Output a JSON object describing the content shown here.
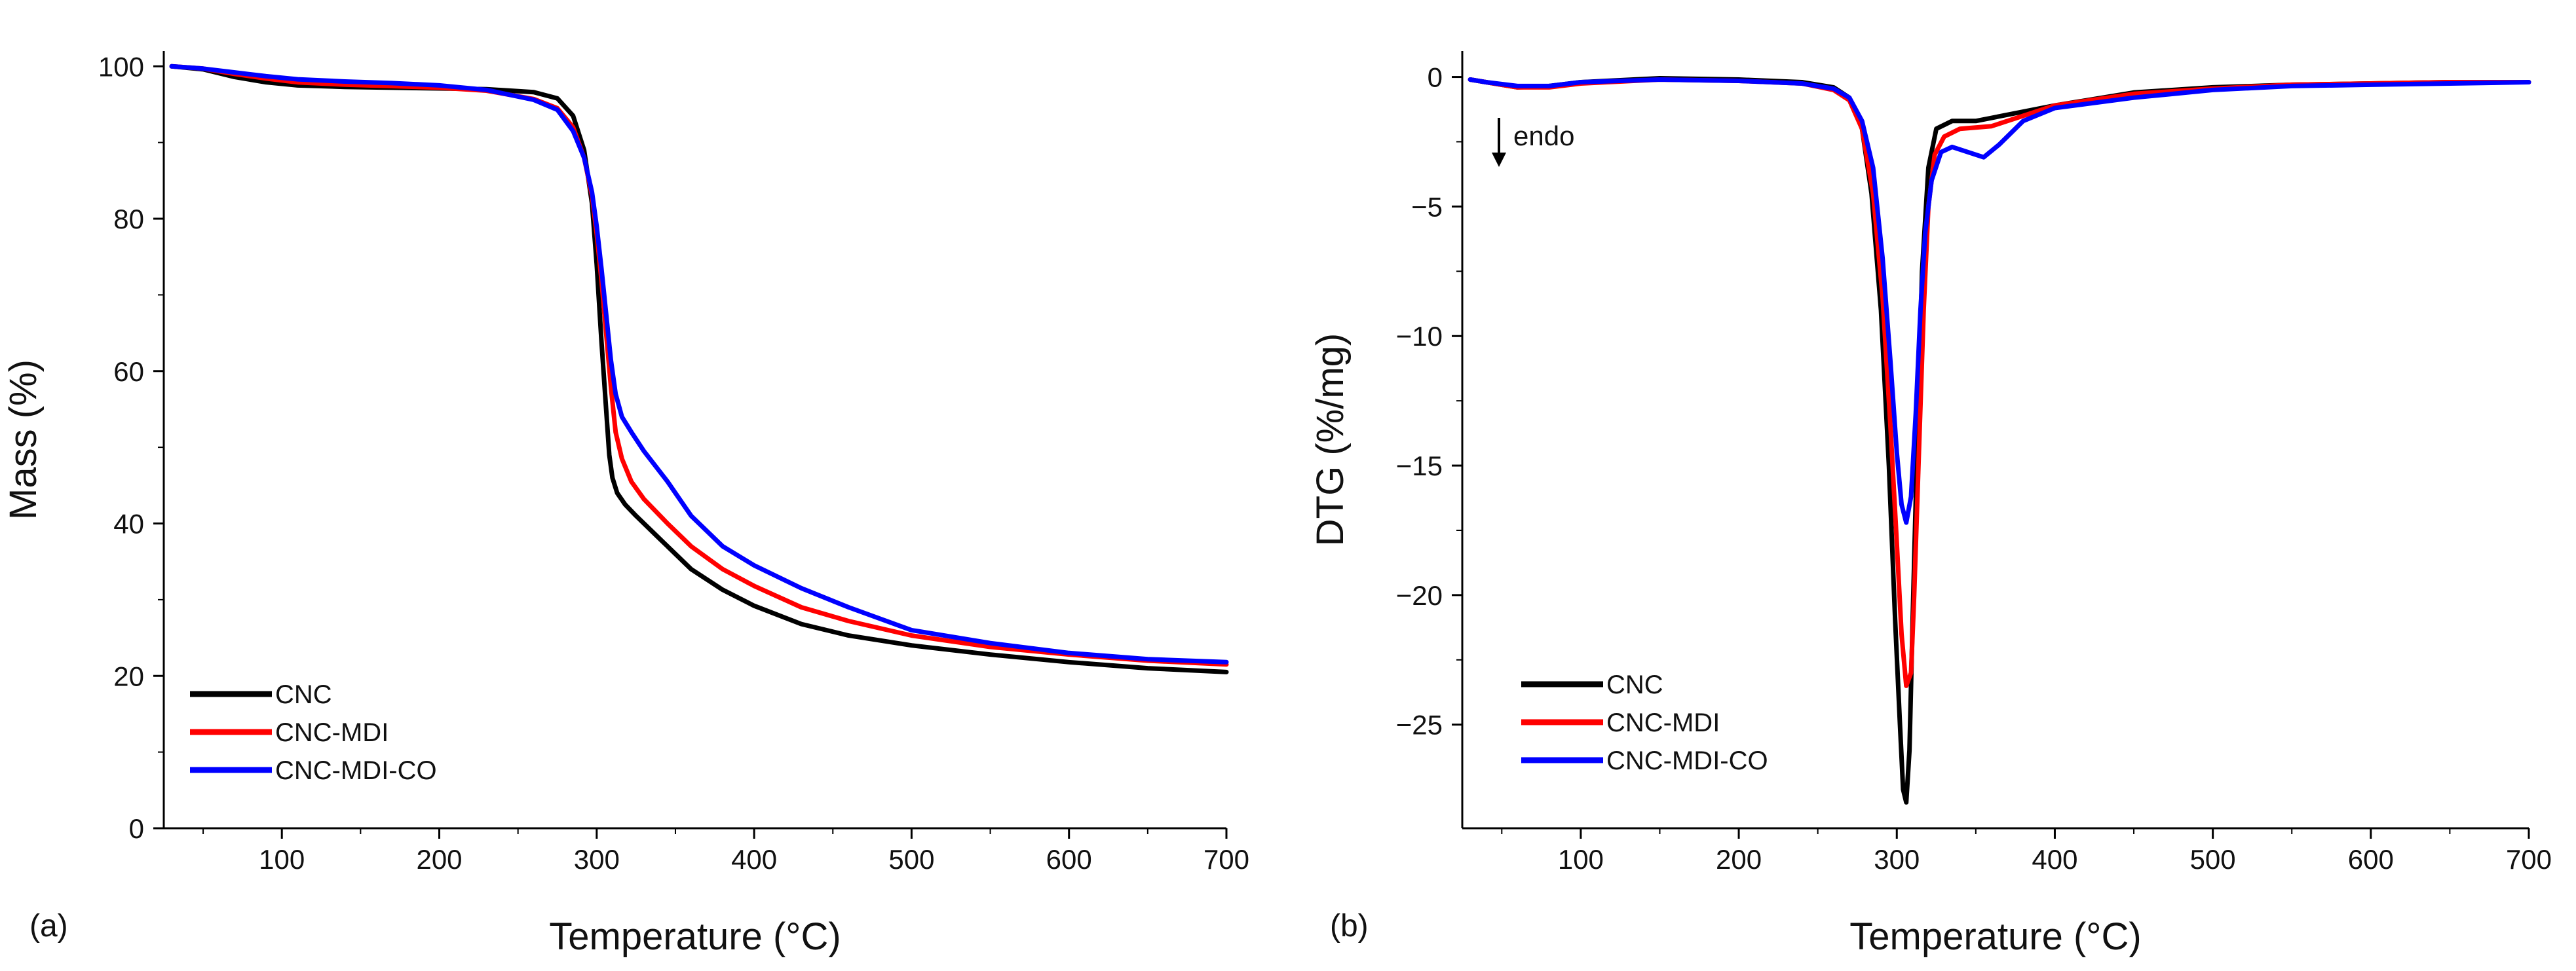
{
  "chart_data": [
    {
      "type": "line",
      "panel_label": "(a)",
      "title": "",
      "xlabel": "Temperature  (°C)",
      "ylabel": "Mass (%)",
      "xlim": [
        25,
        700
      ],
      "ylim": [
        0,
        102
      ],
      "xticks": [
        100,
        200,
        300,
        400,
        500,
        600,
        700
      ],
      "yticks": [
        0,
        20,
        40,
        60,
        80,
        100
      ],
      "grid": false,
      "legend_position": "bottom-left",
      "series": [
        {
          "name": "CNC",
          "color": "#000000",
          "x": [
            30,
            50,
            70,
            90,
            110,
            140,
            170,
            200,
            230,
            260,
            275,
            285,
            292,
            297,
            300,
            303,
            306,
            308,
            310,
            313,
            318,
            325,
            340,
            360,
            380,
            400,
            430,
            460,
            500,
            550,
            600,
            650,
            700
          ],
          "y": [
            100,
            99.6,
            98.6,
            97.9,
            97.5,
            97.3,
            97.2,
            97.1,
            97.0,
            96.6,
            95.8,
            93.5,
            89,
            82,
            74,
            64,
            55,
            49,
            46,
            44,
            42.5,
            41,
            38,
            34,
            31.3,
            29.2,
            26.8,
            25.3,
            24,
            22.8,
            21.8,
            21,
            20.5
          ]
        },
        {
          "name": "CNC-MDI",
          "color": "#ff0000",
          "x": [
            30,
            50,
            70,
            90,
            110,
            140,
            170,
            200,
            230,
            260,
            275,
            285,
            292,
            297,
            300,
            303,
            306,
            309,
            312,
            316,
            322,
            330,
            345,
            360,
            380,
            400,
            430,
            460,
            500,
            550,
            600,
            650,
            700
          ],
          "y": [
            100,
            99.7,
            99,
            98.4,
            97.9,
            97.6,
            97.4,
            97.2,
            96.8,
            95.7,
            94.5,
            92,
            88,
            83,
            78,
            72,
            65,
            58,
            52,
            48.5,
            45.5,
            43.2,
            40,
            37,
            34,
            31.8,
            29,
            27.2,
            25.3,
            23.8,
            22.8,
            22,
            21.5
          ]
        },
        {
          "name": "CNC-MDI-CO",
          "color": "#0000ff",
          "x": [
            30,
            50,
            70,
            90,
            110,
            140,
            170,
            200,
            230,
            260,
            275,
            285,
            292,
            297,
            300,
            303,
            306,
            309,
            312,
            316,
            322,
            330,
            345,
            360,
            380,
            400,
            430,
            460,
            500,
            550,
            600,
            650,
            700
          ],
          "y": [
            100,
            99.7,
            99.2,
            98.7,
            98.3,
            98,
            97.8,
            97.5,
            96.9,
            95.6,
            94.3,
            91.5,
            88,
            83.5,
            79,
            73.5,
            67.5,
            61.5,
            57,
            54,
            52,
            49.5,
            45.5,
            41,
            37,
            34.5,
            31.5,
            29,
            26,
            24.3,
            23,
            22.2,
            21.8
          ]
        }
      ]
    },
    {
      "type": "line",
      "panel_label": "(b)",
      "title": "",
      "xlabel": "Temperature  (°C)",
      "ylabel": "DTG (%/mg)",
      "xlim": [
        25,
        700
      ],
      "ylim": [
        -29,
        1
      ],
      "xticks": [
        100,
        200,
        300,
        400,
        500,
        600,
        700
      ],
      "yticks": [
        0,
        -5,
        -10,
        -15,
        -20,
        -25
      ],
      "ytick_labels": [
        "0",
        "−5",
        "−10",
        "−15",
        "−20",
        "−25"
      ],
      "grid": false,
      "legend_position": "bottom-left",
      "annotation": {
        "text": "endo",
        "arrow": "down"
      },
      "series": [
        {
          "name": "CNC",
          "color": "#000000",
          "x": [
            30,
            40,
            60,
            80,
            100,
            150,
            200,
            240,
            260,
            270,
            278,
            284,
            290,
            295,
            299,
            302,
            304,
            306,
            308,
            310,
            313,
            316,
            320,
            325,
            335,
            350,
            400,
            450,
            500,
            550,
            600,
            650,
            700
          ],
          "y": [
            -0.1,
            -0.2,
            -0.4,
            -0.35,
            -0.2,
            -0.05,
            -0.1,
            -0.2,
            -0.4,
            -0.8,
            -2,
            -4.5,
            -9,
            -15,
            -21,
            -25,
            -27.5,
            -28,
            -26,
            -21,
            -14,
            -7.5,
            -3.5,
            -2,
            -1.7,
            -1.7,
            -1.1,
            -0.6,
            -0.4,
            -0.3,
            -0.25,
            -0.2,
            -0.2
          ]
        },
        {
          "name": "CNC-MDI",
          "color": "#ff0000",
          "x": [
            30,
            40,
            60,
            80,
            100,
            150,
            200,
            240,
            260,
            270,
            278,
            285,
            291,
            296,
            300,
            303,
            306,
            309,
            311,
            314,
            317,
            320,
            324,
            330,
            340,
            360,
            400,
            450,
            500,
            550,
            600,
            650,
            700
          ],
          "y": [
            -0.1,
            -0.2,
            -0.4,
            -0.4,
            -0.25,
            -0.1,
            -0.15,
            -0.25,
            -0.5,
            -0.9,
            -2,
            -4.5,
            -8.5,
            -13.5,
            -18,
            -21.5,
            -23.5,
            -23,
            -20,
            -14.5,
            -9,
            -5,
            -3,
            -2.3,
            -2,
            -1.9,
            -1.1,
            -0.65,
            -0.45,
            -0.3,
            -0.25,
            -0.2,
            -0.2
          ]
        },
        {
          "name": "CNC-MDI-CO",
          "color": "#0000ff",
          "x": [
            30,
            40,
            60,
            80,
            100,
            150,
            200,
            240,
            260,
            270,
            278,
            285,
            291,
            296,
            300,
            303,
            306,
            309,
            312,
            315,
            318,
            322,
            328,
            335,
            345,
            355,
            365,
            380,
            400,
            450,
            500,
            550,
            600,
            650,
            700
          ],
          "y": [
            -0.1,
            -0.2,
            -0.35,
            -0.35,
            -0.2,
            -0.1,
            -0.15,
            -0.25,
            -0.45,
            -0.8,
            -1.7,
            -3.5,
            -7,
            -11,
            -14.5,
            -16.5,
            -17.2,
            -16.2,
            -13,
            -9,
            -6,
            -4,
            -2.9,
            -2.7,
            -2.9,
            -3.1,
            -2.6,
            -1.7,
            -1.2,
            -0.8,
            -0.5,
            -0.35,
            -0.3,
            -0.25,
            -0.2
          ]
        }
      ]
    }
  ]
}
